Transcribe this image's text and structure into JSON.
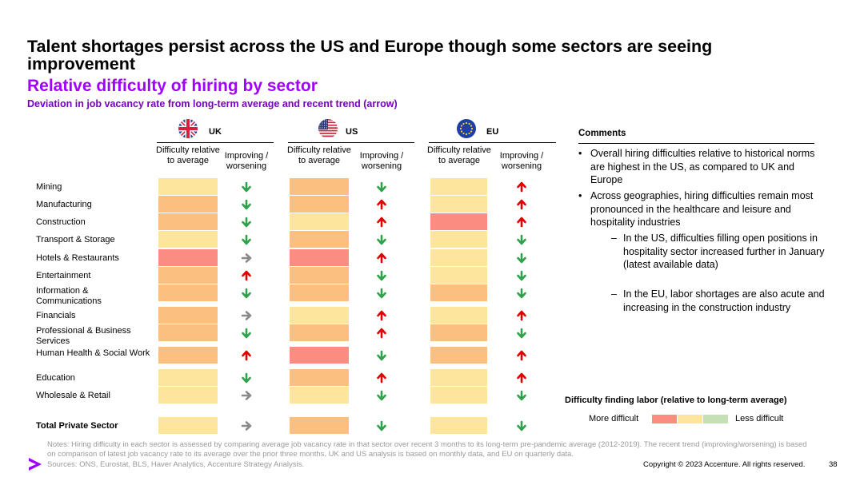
{
  "slide": {
    "title": "Talent shortages persist across the US and Europe though some sectors are seeing improvement",
    "subtitle": "Relative difficulty of hiring by sector",
    "subsubtitle": "Deviation in job vacancy rate from long-term average and recent trend (arrow)",
    "page_number": "38",
    "copyright": "Copyright © 2023 Accenture. All rights reserved.",
    "notes": "Notes: Hiring difficulty in each sector is assessed by comparing average job vacancy rate in that sector over recent 3 months to its long-term pre-pandemic average (2012-2019). The recent trend (improving/worsening) is based on comparison of latest job vacancy rate to its average over the prior three months. UK and US analysis is based on monthly data, and EU on quarterly data.",
    "sources": "Sources: ONS, Eurostat, BLS, Haver Analytics, Accenture Strategy Analysis."
  },
  "colors": {
    "accent_purple": "#a100ff",
    "dark_purple": "#7500c0",
    "very_high": "#fa8c82",
    "high": "#fbbf80",
    "moderate": "#fde59c",
    "low": "#c5e0b4",
    "arrow_up": "#e00000",
    "arrow_down": "#2fa14a",
    "arrow_flat": "#8a8a8a"
  },
  "comments": {
    "heading": "Comments",
    "bullets": [
      {
        "level": 1,
        "mark": "•",
        "text": "Overall hiring difficulties relative to historical norms are highest in the US, as compared to UK and Europe"
      },
      {
        "level": 1,
        "mark": "•",
        "text": "Across geographies, hiring difficulties remain most pronounced in the healthcare and leisure and hospitality industries"
      },
      {
        "level": 2,
        "mark": "–",
        "text": "In the US, difficulties filling open positions in hospitality sector increased further in January (latest available data)"
      },
      {
        "level": 2,
        "mark": "–",
        "text": "In the EU, labor shortages are also acute and increasing in the construction industry"
      }
    ]
  },
  "legend": {
    "title": "Difficulty finding labor (relative to long-term average)",
    "more": "More difficult",
    "less": "Less difficult"
  },
  "chart_data": {
    "type": "table",
    "columns": [
      "Difficulty relative to average",
      "Improving / worsening"
    ],
    "difficulty_scale": [
      "very_high",
      "high",
      "moderate",
      "low"
    ],
    "countries": [
      {
        "name": "UK",
        "flag": "uk-flag",
        "difficulty": [
          "moderate",
          "high",
          "high",
          "moderate",
          "very_high",
          "high",
          "high",
          "high",
          "high",
          "high",
          "moderate",
          "moderate",
          "moderate"
        ],
        "trend": [
          "down",
          "down",
          "down",
          "down",
          "flat",
          "up",
          "down",
          "flat",
          "down",
          "up",
          "down",
          "flat",
          "flat"
        ]
      },
      {
        "name": "US",
        "flag": "us-flag",
        "difficulty": [
          "high",
          "high",
          "moderate",
          "high",
          "very_high",
          "high",
          "high",
          "moderate",
          "high",
          "very_high",
          "high",
          "moderate",
          "high"
        ],
        "trend": [
          "down",
          "up",
          "up",
          "down",
          "up",
          "down",
          "down",
          "up",
          "up",
          "down",
          "up",
          "down",
          "down"
        ]
      },
      {
        "name": "EU",
        "flag": "eu-flag",
        "difficulty": [
          "moderate",
          "moderate",
          "very_high",
          "moderate",
          "moderate",
          "moderate",
          "high",
          "moderate",
          "high",
          "high",
          "moderate",
          "moderate",
          "moderate"
        ],
        "trend": [
          "up",
          "up",
          "up",
          "down",
          "down",
          "down",
          "down",
          "up",
          "down",
          "up",
          "up",
          "down",
          "down"
        ]
      }
    ],
    "rows": [
      "Mining",
      "Manufacturing",
      "Construction",
      "Transport & Storage",
      "Hotels & Restaurants",
      "Entertainment",
      "Information & Communications",
      "Financials",
      "Professional & Business Services",
      "Human Health & Social Work",
      "Education",
      "Wholesale & Retail",
      "Total Private Sector"
    ]
  }
}
